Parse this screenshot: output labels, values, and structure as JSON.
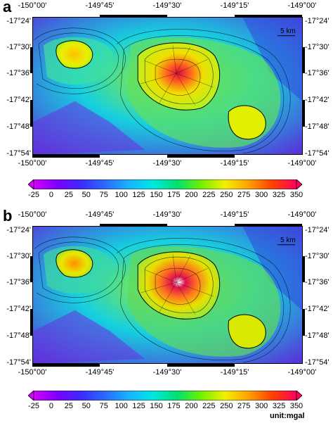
{
  "panels": [
    {
      "letter": "a",
      "scale_label": "5 km"
    },
    {
      "letter": "b",
      "scale_label": "5 km"
    }
  ],
  "lon_ticks": [
    "-150°00'",
    "-149°45'",
    "-149°30'",
    "-149°15'",
    "-149°00'"
  ],
  "lat_ticks": [
    "-17°24'",
    "-17°30'",
    "-17°36'",
    "-17°42'",
    "-17°48'",
    "-17°54'"
  ],
  "colorbar": {
    "ticks": [
      "-25",
      "0",
      "25",
      "50",
      "75",
      "100",
      "125",
      "150",
      "175",
      "200",
      "225",
      "250",
      "275",
      "300",
      "325",
      "350"
    ],
    "min": -25,
    "max": 350,
    "colors": [
      "#d400ff",
      "#7b00ff",
      "#3b2cff",
      "#2a6bff",
      "#19b4ff",
      "#00e8e0",
      "#00e070",
      "#70f000",
      "#f0f000",
      "#ffa000",
      "#ff4000",
      "#ff0060"
    ],
    "unit_label": "unit:mgal"
  },
  "colors": {
    "deep": "#5a2ad8",
    "mid": "#16d0e0",
    "shelf": "#9af020",
    "high": "#ffa010",
    "peak": "#ff2060"
  }
}
